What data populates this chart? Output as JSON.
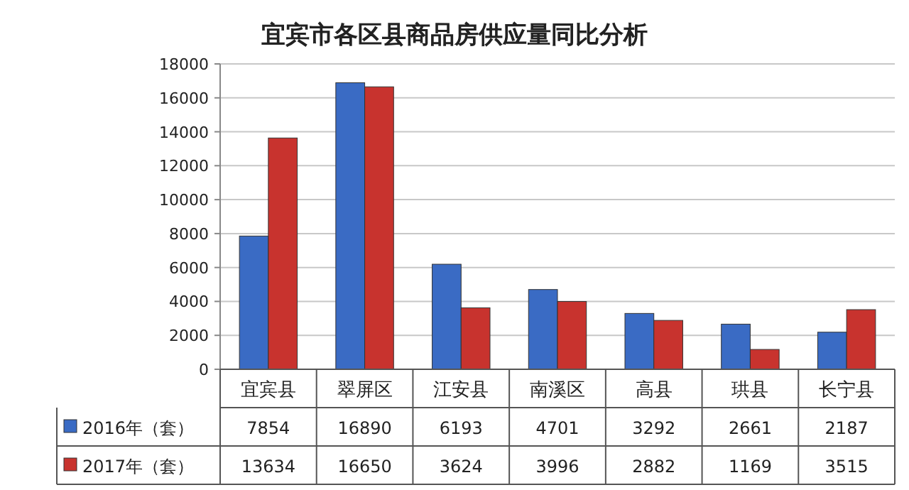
{
  "chart_data": {
    "type": "bar",
    "title": "宜宾市各区县商品房供应量同比分析",
    "categories": [
      "宜宾县",
      "翠屏区",
      "江安县",
      "南溪区",
      "高县",
      "珙县",
      "长宁县"
    ],
    "series": [
      {
        "name": "2016年（套）",
        "color": "#3a6bc4",
        "values": [
          7854,
          16890,
          6193,
          4701,
          3292,
          2661,
          2187
        ]
      },
      {
        "name": "2017年（套）",
        "color": "#c8332e",
        "values": [
          13634,
          16650,
          3624,
          3996,
          2882,
          1169,
          3515
        ]
      }
    ],
    "ylim": [
      0,
      18000
    ],
    "yticks": [
      0,
      2000,
      4000,
      6000,
      8000,
      10000,
      12000,
      14000,
      16000,
      18000
    ],
    "grid": "y",
    "legend": "bottom left",
    "data_labels": true
  }
}
